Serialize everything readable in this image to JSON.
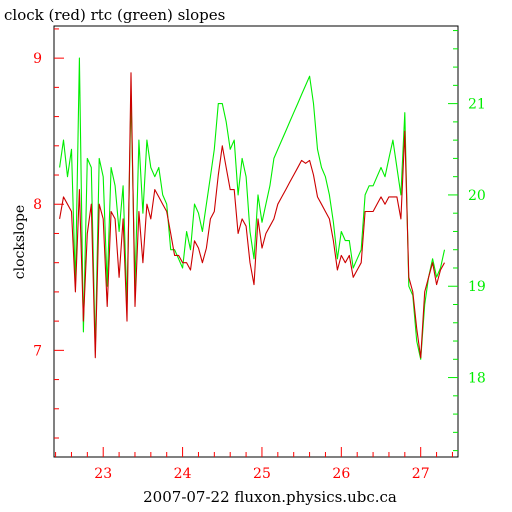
{
  "chart_data": {
    "type": "line",
    "title": "clock (red) rtc (green) slopes",
    "xlabel": "2007-07-22 fluxon.physics.ubc.ca",
    "ylabel": "clockslope",
    "xlim": [
      22.38,
      27.47
    ],
    "ylim_left": [
      6.27,
      9.22
    ],
    "ylim_right": [
      17.13,
      21.85
    ],
    "x_ticks": [
      23,
      24,
      25,
      26,
      27
    ],
    "y_ticks_left": [
      7,
      8,
      9
    ],
    "y_ticks_right": [
      18,
      19,
      20,
      21
    ],
    "grid": false,
    "series": [
      {
        "name": "clock",
        "axis": "left",
        "color": "#cc0000",
        "x": [
          22.45,
          22.5,
          22.55,
          22.6,
          22.65,
          22.7,
          22.75,
          22.8,
          22.85,
          22.9,
          22.95,
          23.0,
          23.05,
          23.1,
          23.15,
          23.2,
          23.25,
          23.3,
          23.35,
          23.4,
          23.45,
          23.5,
          23.55,
          23.6,
          23.65,
          23.7,
          23.75,
          23.8,
          23.85,
          23.9,
          23.95,
          24.0,
          24.05,
          24.1,
          24.15,
          24.2,
          24.25,
          24.3,
          24.35,
          24.4,
          24.45,
          24.5,
          24.55,
          24.6,
          24.65,
          24.7,
          24.75,
          24.8,
          24.85,
          24.9,
          24.95,
          25.0,
          25.05,
          25.1,
          25.15,
          25.2,
          25.25,
          25.3,
          25.35,
          25.4,
          25.45,
          25.5,
          25.55,
          25.6,
          25.65,
          25.7,
          25.75,
          25.8,
          25.85,
          25.9,
          25.95,
          26.0,
          26.05,
          26.1,
          26.15,
          26.2,
          26.25,
          26.3,
          26.35,
          26.4,
          26.45,
          26.5,
          26.55,
          26.6,
          26.65,
          26.7,
          26.75,
          26.8,
          26.85,
          26.9,
          26.95,
          27.0,
          27.05,
          27.1,
          27.15,
          27.2,
          27.25,
          27.3
        ],
        "y": [
          7.9,
          8.05,
          8.0,
          7.95,
          7.4,
          8.1,
          7.2,
          7.8,
          8.0,
          6.95,
          8.0,
          7.9,
          7.3,
          7.95,
          7.9,
          7.5,
          7.9,
          7.2,
          8.9,
          7.3,
          7.95,
          7.6,
          8.0,
          7.9,
          8.1,
          8.05,
          8.0,
          7.95,
          7.8,
          7.65,
          7.65,
          7.6,
          7.6,
          7.55,
          7.75,
          7.7,
          7.6,
          7.7,
          7.9,
          7.95,
          8.2,
          8.4,
          8.25,
          8.1,
          8.1,
          7.8,
          7.9,
          7.85,
          7.6,
          7.45,
          7.9,
          7.7,
          7.8,
          7.85,
          7.9,
          8.0,
          8.05,
          8.1,
          8.15,
          8.2,
          8.25,
          8.3,
          8.28,
          8.3,
          8.2,
          8.05,
          8.0,
          7.95,
          7.9,
          7.75,
          7.55,
          7.65,
          7.6,
          7.65,
          7.5,
          7.55,
          7.6,
          7.95,
          7.95,
          7.95,
          8.0,
          8.05,
          8.0,
          8.05,
          8.05,
          8.05,
          7.9,
          8.5,
          7.5,
          7.4,
          7.15,
          6.95,
          7.4,
          7.5,
          7.6,
          7.45,
          7.55,
          7.6
        ],
        "color_hex": "#cc0000"
      },
      {
        "name": "rtc",
        "axis": "right",
        "color": "#00ee00",
        "x": [
          22.45,
          22.5,
          22.55,
          22.6,
          22.65,
          22.7,
          22.75,
          22.8,
          22.85,
          22.9,
          22.95,
          23.0,
          23.05,
          23.1,
          23.15,
          23.2,
          23.25,
          23.3,
          23.35,
          23.4,
          23.45,
          23.5,
          23.55,
          23.6,
          23.65,
          23.7,
          23.75,
          23.8,
          23.85,
          23.9,
          23.95,
          24.0,
          24.05,
          24.1,
          24.15,
          24.2,
          24.25,
          24.3,
          24.35,
          24.4,
          24.45,
          24.5,
          24.55,
          24.6,
          24.65,
          24.7,
          24.75,
          24.8,
          24.85,
          24.9,
          24.95,
          25.0,
          25.05,
          25.1,
          25.15,
          25.2,
          25.25,
          25.3,
          25.35,
          25.4,
          25.45,
          25.5,
          25.55,
          25.6,
          25.65,
          25.7,
          25.75,
          25.8,
          25.85,
          25.9,
          25.95,
          26.0,
          26.05,
          26.1,
          26.15,
          26.2,
          26.25,
          26.3,
          26.35,
          26.4,
          26.45,
          26.5,
          26.55,
          26.6,
          26.65,
          26.7,
          26.75,
          26.8,
          26.85,
          26.9,
          26.95,
          27.0,
          27.05,
          27.1,
          27.15,
          27.2,
          27.25,
          27.3
        ],
        "y": [
          20.3,
          20.6,
          20.2,
          20.5,
          19.0,
          21.5,
          18.5,
          20.4,
          20.3,
          18.3,
          20.4,
          20.2,
          19.0,
          20.3,
          20.1,
          19.6,
          20.1,
          18.8,
          21.1,
          19.0,
          20.6,
          19.8,
          20.6,
          20.3,
          20.2,
          20.3,
          20.0,
          19.9,
          19.4,
          19.4,
          19.3,
          19.2,
          19.6,
          19.4,
          19.9,
          19.8,
          19.6,
          19.9,
          20.2,
          20.5,
          21.0,
          21.0,
          20.8,
          20.5,
          20.6,
          20.0,
          20.4,
          20.2,
          19.6,
          19.3,
          20.0,
          19.7,
          19.9,
          20.1,
          20.4,
          20.5,
          20.6,
          20.7,
          20.8,
          20.9,
          21.0,
          21.1,
          21.2,
          21.3,
          21.0,
          20.5,
          20.3,
          20.2,
          20.0,
          19.7,
          19.3,
          19.6,
          19.5,
          19.5,
          19.2,
          19.3,
          19.4,
          20.0,
          20.1,
          20.1,
          20.2,
          20.3,
          20.2,
          20.4,
          20.6,
          20.3,
          20.0,
          20.9,
          19.0,
          18.9,
          18.4,
          18.2,
          18.8,
          19.1,
          19.3,
          19.1,
          19.2,
          19.4
        ],
        "color_hex": "#00ee00"
      }
    ]
  }
}
